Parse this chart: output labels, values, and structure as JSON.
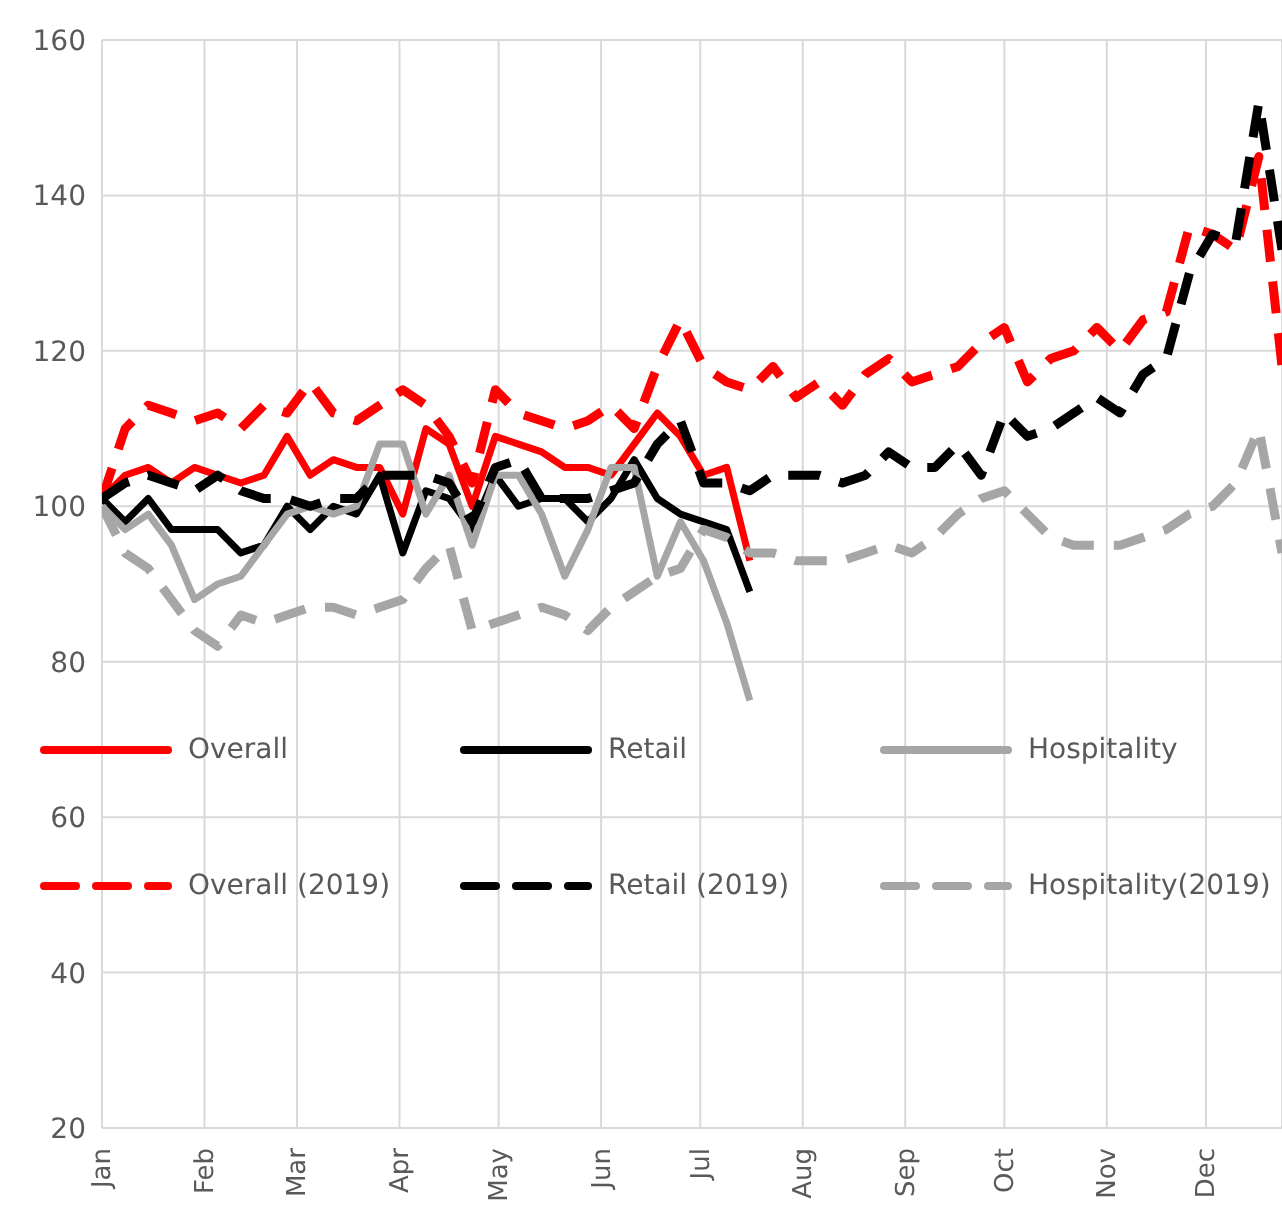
{
  "chart_data": {
    "type": "line",
    "x": [
      "--01-01",
      "--01-08",
      "--01-15",
      "--01-22",
      "--01-29",
      "--02-05",
      "--02-12",
      "--02-19",
      "--02-26",
      "--03-05",
      "--03-12",
      "--03-19",
      "--03-26",
      "--04-02",
      "--04-09",
      "--04-16",
      "--04-23",
      "--04-30",
      "--05-07",
      "--05-14",
      "--05-21",
      "--05-28",
      "--06-04",
      "--06-11",
      "--06-18",
      "--06-25",
      "--07-02",
      "--07-09",
      "--07-16",
      "--07-23",
      "--07-30",
      "--08-06",
      "--08-13",
      "--08-20",
      "--08-27",
      "--09-03",
      "--09-10",
      "--09-17",
      "--09-24",
      "--10-01",
      "--10-08",
      "--10-15",
      "--10-22",
      "--10-29",
      "--11-05",
      "--11-12",
      "--11-19",
      "--11-26",
      "--12-03",
      "--12-10",
      "--12-17",
      "--12-24"
    ],
    "series": [
      {
        "name": "Overall",
        "color": "#ff0000",
        "line_style": "solid",
        "values": [
          101,
          104,
          105,
          103,
          105,
          104,
          103,
          104,
          109,
          104,
          106,
          105,
          105,
          99,
          110,
          108,
          100,
          109,
          108,
          107,
          105,
          105,
          104,
          108,
          112,
          109,
          104,
          105,
          93,
          null,
          null,
          null,
          null,
          null,
          null,
          null,
          null,
          null,
          null,
          null,
          null,
          null,
          null,
          null,
          null,
          null,
          null,
          null,
          null,
          null,
          null,
          null
        ]
      },
      {
        "name": "Retail",
        "color": "#000000",
        "line_style": "solid",
        "values": [
          101,
          98,
          101,
          97,
          97,
          97,
          94,
          95,
          100,
          97,
          100,
          99,
          104,
          94,
          102,
          101,
          97,
          104,
          100,
          101,
          101,
          98,
          101,
          106,
          101,
          99,
          98,
          97,
          89,
          null,
          null,
          null,
          null,
          null,
          null,
          null,
          null,
          null,
          null,
          null,
          null,
          null,
          null,
          null,
          null,
          null,
          null,
          null,
          null,
          null,
          null,
          null
        ]
      },
      {
        "name": "Hospitality",
        "color": "#a6a6a6",
        "line_style": "solid",
        "values": [
          100,
          97,
          99,
          95,
          88,
          90,
          91,
          95,
          99,
          100,
          99,
          100,
          108,
          108,
          99,
          104,
          95,
          104,
          104,
          99,
          91,
          97,
          105,
          105,
          91,
          98,
          93,
          85,
          75,
          null,
          null,
          null,
          null,
          null,
          null,
          null,
          null,
          null,
          null,
          null,
          null,
          null,
          null,
          null,
          null,
          null,
          null,
          null,
          null,
          null,
          null,
          null
        ]
      },
      {
        "name": "Overall (2019)",
        "color": "#ff0000",
        "line_style": "dashed",
        "values": [
          101,
          110,
          113,
          112,
          111,
          112,
          110,
          113,
          112,
          116,
          112,
          111,
          113,
          115,
          113,
          109,
          103,
          115,
          112,
          111,
          110,
          111,
          113,
          110,
          118,
          124,
          118,
          116,
          115,
          118,
          114,
          116,
          113,
          117,
          119,
          116,
          117,
          118,
          121,
          123,
          116,
          119,
          120,
          123,
          120,
          124,
          125,
          136,
          135,
          133,
          145,
          118
        ]
      },
      {
        "name": "Retail (2019)",
        "color": "#000000",
        "line_style": "dashed",
        "values": [
          101,
          103,
          104,
          103,
          102,
          104,
          102,
          101,
          101,
          100,
          101,
          101,
          104,
          104,
          104,
          103,
          98,
          105,
          106,
          101,
          101,
          101,
          102,
          103,
          108,
          111,
          103,
          103,
          102,
          104,
          104,
          104,
          103,
          104,
          107,
          105,
          105,
          108,
          104,
          112,
          109,
          110,
          112,
          114,
          112,
          117,
          119,
          130,
          135,
          134,
          152,
          133
        ]
      },
      {
        "name": "Hospitality(2019)",
        "color": "#a6a6a6",
        "line_style": "dashed",
        "values": [
          100,
          94,
          92,
          88,
          84,
          82,
          86,
          85,
          86,
          87,
          87,
          86,
          87,
          88,
          92,
          95,
          84,
          85,
          86,
          87,
          86,
          84,
          87,
          89,
          91,
          92,
          97,
          96,
          94,
          94,
          93,
          93,
          93,
          94,
          95,
          94,
          96,
          99,
          101,
          102,
          99,
          96,
          95,
          95,
          95,
          96,
          97,
          99,
          100,
          103,
          110,
          94
        ]
      }
    ],
    "xlim": [
      "--01-01",
      "--12-24"
    ],
    "xticks": [
      {
        "value": "--01-01",
        "label": "Jan"
      },
      {
        "value": "--02-01",
        "label": "Feb"
      },
      {
        "value": "--03-01",
        "label": "Mar"
      },
      {
        "value": "--04-01",
        "label": "Apr"
      },
      {
        "value": "--05-01",
        "label": "May"
      },
      {
        "value": "--06-01",
        "label": "Jun"
      },
      {
        "value": "--07-01",
        "label": "Jul"
      },
      {
        "value": "--08-01",
        "label": "Aug"
      },
      {
        "value": "--09-01",
        "label": "Sep"
      },
      {
        "value": "--10-01",
        "label": "Oct"
      },
      {
        "value": "--11-01",
        "label": "Nov"
      },
      {
        "value": "--12-01",
        "label": "Dec"
      }
    ],
    "ylim": [
      20,
      160
    ],
    "yticks": [
      20,
      40,
      60,
      80,
      100,
      120,
      140,
      160
    ],
    "grid": true,
    "legend": "bottom",
    "marker": "none"
  }
}
